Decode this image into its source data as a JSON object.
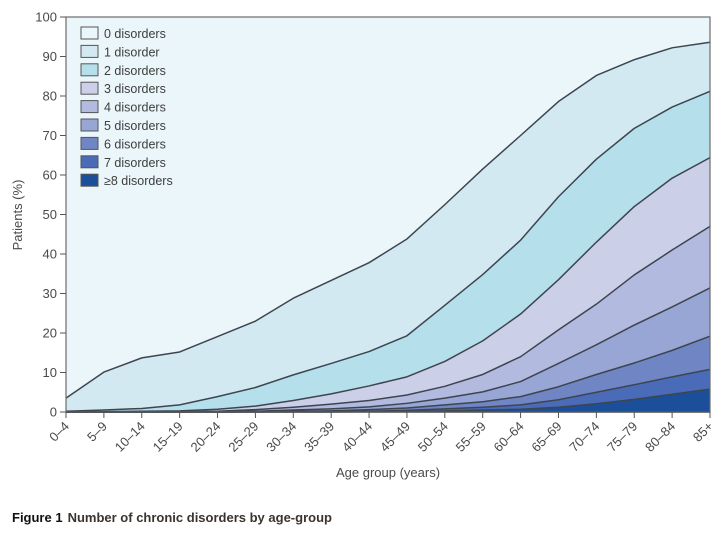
{
  "caption": {
    "figure_label": "Figure 1",
    "text": "Number of chronic disorders by age-group"
  },
  "chart_data": {
    "type": "area",
    "stacked": true,
    "title": "Number of chronic disorders by age-group",
    "xlabel": "Age group (years)",
    "ylabel": "Patients (%)",
    "ylim": [
      0,
      100
    ],
    "yticks": [
      0,
      10,
      20,
      30,
      40,
      50,
      60,
      70,
      80,
      90,
      100
    ],
    "grid": false,
    "legend_position": "top-left",
    "categories": [
      "0–4",
      "5–9",
      "10–14",
      "15–19",
      "20–24",
      "25–29",
      "30–34",
      "35–39",
      "40–44",
      "45–49",
      "50–54",
      "55–59",
      "60–64",
      "65–69",
      "70–74",
      "75–79",
      "80–84",
      "85+"
    ],
    "series": [
      {
        "name": "≥8 disorders",
        "color": "#1b4f9a",
        "values": [
          0,
          0,
          0,
          0,
          0,
          0,
          0,
          0,
          0.1,
          0.1,
          0.3,
          0.5,
          0.7,
          1.2,
          2.1,
          3.2,
          4.5,
          5.8
        ]
      },
      {
        "name": "7 disorders",
        "color": "#4a6bb7",
        "values": [
          0,
          0,
          0,
          0,
          0,
          0,
          0.1,
          0.1,
          0.1,
          0.3,
          0.5,
          0.7,
          1.1,
          1.9,
          2.9,
          3.7,
          4.4,
          5.0
        ]
      },
      {
        "name": "6 disorders",
        "color": "#7086c4",
        "values": [
          0,
          0,
          0,
          0,
          0,
          0.1,
          0.1,
          0.2,
          0.4,
          0.6,
          1.0,
          1.4,
          2.1,
          3.3,
          4.5,
          5.5,
          6.7,
          8.4
        ]
      },
      {
        "name": "5 disorders",
        "color": "#97a6d4",
        "values": [
          0,
          0,
          0,
          0,
          0.1,
          0.1,
          0.3,
          0.5,
          0.7,
          1.2,
          1.7,
          2.5,
          3.8,
          5.9,
          7.5,
          9.6,
          11.0,
          12.2
        ]
      },
      {
        "name": "4 disorders",
        "color": "#b2badf",
        "values": [
          0,
          0,
          0,
          0.1,
          0.1,
          0.4,
          0.7,
          1.2,
          1.6,
          2.1,
          3.0,
          4.4,
          6.3,
          8.5,
          10.3,
          12.7,
          14.4,
          15.6
        ]
      },
      {
        "name": "3 disorders",
        "color": "#cbcfe8",
        "values": [
          0,
          0.1,
          0.2,
          0.2,
          0.5,
          0.9,
          1.7,
          2.6,
          3.7,
          4.6,
          6.3,
          8.5,
          10.8,
          12.7,
          15.7,
          17.3,
          18.2,
          17.4
        ]
      },
      {
        "name": "2 disorders",
        "color": "#b5dfeb",
        "values": [
          0.2,
          0.4,
          0.7,
          1.5,
          3.2,
          4.7,
          6.5,
          7.7,
          8.7,
          10.4,
          14.2,
          16.8,
          18.7,
          21.0,
          21.0,
          19.8,
          18.0,
          16.8
        ]
      },
      {
        "name": "1 disorder",
        "color": "#d3e9f1",
        "values": [
          3.3,
          9.6,
          12.8,
          13.4,
          15.2,
          16.8,
          19.4,
          21.0,
          22.5,
          24.5,
          25.5,
          26.7,
          26.5,
          24.1,
          21.2,
          17.4,
          15.0,
          12.4
        ]
      },
      {
        "name": "0 disorders",
        "color": "#eaf6f9",
        "values": [
          96.5,
          89.9,
          86.3,
          84.8,
          80.9,
          77.0,
          71.2,
          66.7,
          62.2,
          56.2,
          47.5,
          38.5,
          30.0,
          21.4,
          14.8,
          10.8,
          7.8,
          6.4
        ]
      }
    ],
    "legend_order": [
      "0 disorders",
      "1 disorder",
      "2 disorders",
      "3 disorders",
      "4 disorders",
      "5 disorders",
      "6 disorders",
      "7 disorders",
      "≥8 disorders"
    ]
  }
}
